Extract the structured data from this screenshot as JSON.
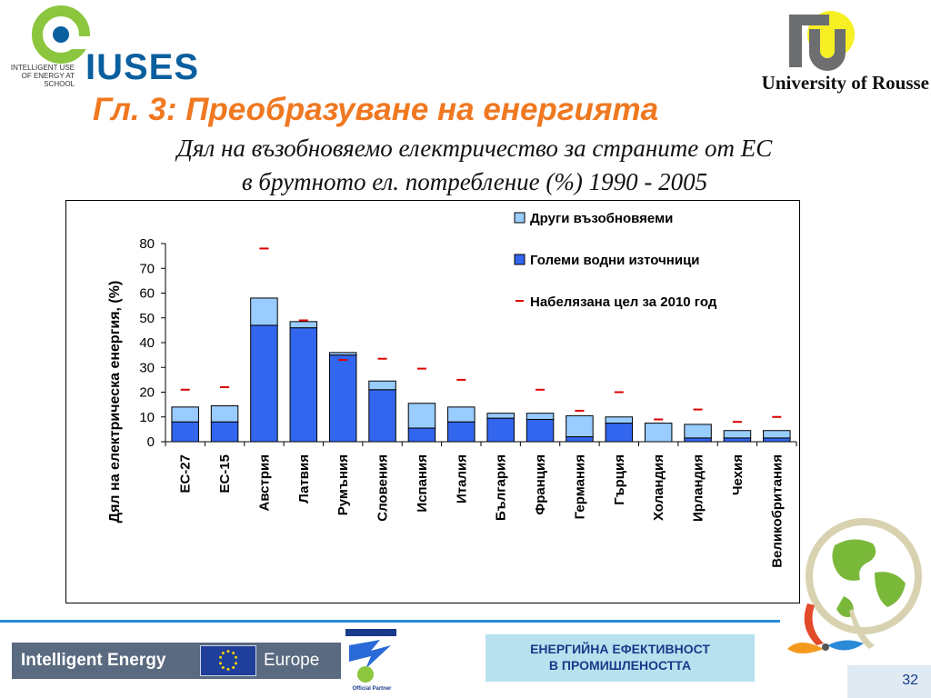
{
  "header": {
    "iuses_small": "INTELLIGENT USE OF ENERGY AT SCHOOL",
    "iuses_word": "IUSES",
    "university": "University of Rousse",
    "title": "Гл. 3: Преобразуване на енергията",
    "subtitle_line1": "Дял на възобновяемо електричество за страните от ЕС",
    "subtitle_line2": "в брутното ел. потребление (%) 1990 - 2005"
  },
  "chart_data": {
    "type": "bar",
    "stacked": true,
    "ylabel": "Дял на електрическа енергия, (%)",
    "ylim": [
      0,
      80
    ],
    "yticks": [
      0,
      10,
      20,
      30,
      40,
      50,
      60,
      70,
      80
    ],
    "categories": [
      "ЕС-27",
      "ЕС-15",
      "Австрия",
      "Латвия",
      "Румъния",
      "Словения",
      "Испания",
      "Италия",
      "България",
      "Франция",
      "Германия",
      "Гърция",
      "Холандия",
      "Ирландия",
      "Чехия",
      "Великобритания"
    ],
    "series": [
      {
        "name": "Големи водни източници",
        "color": "#3366ee",
        "values": [
          8,
          8,
          47,
          46,
          35,
          21,
          5.5,
          8,
          9.5,
          9,
          2,
          7.5,
          0,
          1.5,
          1.5,
          1.5
        ]
      },
      {
        "name": "Други възобновяеми",
        "color": "#99ccff",
        "values": [
          6,
          6.5,
          11,
          2.5,
          1,
          3.5,
          10,
          6,
          2,
          2.5,
          8.5,
          2.5,
          7.5,
          5.5,
          3,
          3
        ]
      }
    ],
    "target": {
      "name": "Набелязана цел за 2010 год",
      "color": "#dd0000",
      "values": [
        21,
        22,
        78,
        49,
        33,
        33.5,
        29.5,
        25,
        null,
        21,
        12.5,
        20,
        9,
        13,
        8,
        10
      ]
    },
    "legend": [
      "Други възобновяеми",
      "Големи водни източници",
      "Набелязана цел за 2010 год"
    ],
    "legend_placement": "top-right",
    "grid": false
  },
  "footer": {
    "ie_left": "Intelligent Energy",
    "ie_right": "Europe",
    "partner": "Official Partner",
    "energy_line1": "ЕНЕРГИЙНА ЕФЕКТИВНОСТ",
    "energy_line2": "В ПРОМИШЛЕНОСТТА",
    "page_number": "32"
  }
}
